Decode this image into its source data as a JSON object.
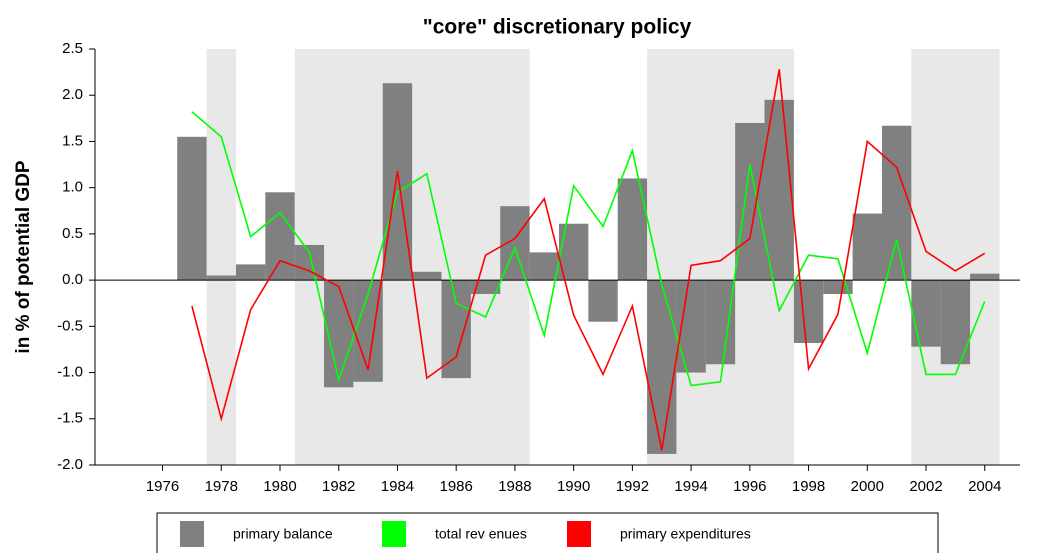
{
  "chart_data": {
    "type": "bar_line",
    "title": "\"core\" discretionary policy",
    "y_label": "in % of potential GDP",
    "x": [
      1977,
      1978,
      1979,
      1980,
      1981,
      1982,
      1983,
      1984,
      1985,
      1986,
      1987,
      1988,
      1989,
      1990,
      1991,
      1992,
      1993,
      1994,
      1995,
      1996,
      1997,
      1998,
      1999,
      2000,
      2001,
      2002,
      2003,
      2004
    ],
    "series": [
      {
        "name": "primary balance",
        "type": "bar",
        "color": "#808080",
        "values": [
          1.55,
          0.05,
          0.17,
          0.95,
          0.38,
          -1.16,
          -1.1,
          2.13,
          0.09,
          -1.06,
          -0.15,
          0.8,
          0.3,
          0.61,
          -0.45,
          1.1,
          -1.88,
          -1.0,
          -0.91,
          1.7,
          1.95,
          -0.68,
          -0.15,
          0.72,
          1.67,
          -0.72,
          -0.91,
          0.07
        ]
      },
      {
        "name": "total rev enues",
        "type": "line",
        "color": "#00ff00",
        "values": [
          1.82,
          1.55,
          0.47,
          0.73,
          0.3,
          -1.08,
          -0.15,
          0.95,
          1.15,
          -0.25,
          -0.4,
          0.35,
          -0.6,
          1.02,
          0.58,
          1.4,
          -0.05,
          -1.14,
          -1.1,
          1.25,
          -0.33,
          0.27,
          0.23,
          -0.79,
          0.44,
          -1.02,
          -1.02,
          -0.23
        ]
      },
      {
        "name": "primary expenditures",
        "type": "line",
        "color": "#ff0000",
        "values": [
          -0.28,
          -1.5,
          -0.32,
          0.21,
          0.1,
          -0.07,
          -0.97,
          1.18,
          -1.06,
          -0.83,
          0.27,
          0.45,
          0.88,
          -0.38,
          -1.02,
          -0.28,
          -1.84,
          0.16,
          0.21,
          0.45,
          2.28,
          -0.96,
          -0.37,
          1.5,
          1.22,
          0.31,
          0.1,
          0.29
        ]
      }
    ],
    "shaded_periods": [
      [
        1977.5,
        1978.5
      ],
      [
        1980.5,
        1988.5
      ],
      [
        1992.5,
        1997.5
      ],
      [
        2001.5,
        2004.5
      ]
    ],
    "shade_color": "#e8e8e8",
    "xlim": [
      1973.7,
      2005.2
    ],
    "xticks": [
      1976,
      1978,
      1980,
      1982,
      1984,
      1986,
      1988,
      1990,
      1992,
      1994,
      1996,
      1998,
      2000,
      2002,
      2004
    ],
    "ylim": [
      -2.0,
      2.5
    ],
    "yticks": [
      {
        "value": -2.0,
        "label": "-2.0"
      },
      -1.5,
      {
        "value": -1.0,
        "label": "-1.0"
      },
      -0.5,
      {
        "value": 0.0,
        "label": "0.0"
      },
      0.5,
      {
        "value": 1.0,
        "label": "1.0"
      },
      1.5,
      {
        "value": 2.0,
        "label": "2.0"
      },
      2.5
    ]
  }
}
